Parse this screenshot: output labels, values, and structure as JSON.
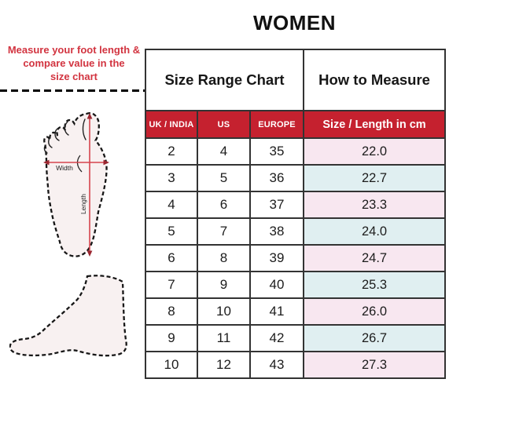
{
  "title": "WOMEN",
  "instruction": {
    "line1": "Measure your foot length &",
    "line2": "compare value in the",
    "line3": "size chart"
  },
  "foot_diagram": {
    "width_label": "Width",
    "length_label": "Length"
  },
  "table": {
    "section_left": "Size Range Chart",
    "section_right": "How to Measure"
  },
  "chart_data": {
    "type": "table",
    "title": "WOMEN",
    "columns": [
      "UK / INDIA",
      "US",
      "EUROPE",
      "Size / Length in cm"
    ],
    "rows": [
      [
        "2",
        "4",
        "35",
        "22.0"
      ],
      [
        "3",
        "5",
        "36",
        "22.7"
      ],
      [
        "4",
        "6",
        "37",
        "23.3"
      ],
      [
        "5",
        "7",
        "38",
        "24.0"
      ],
      [
        "6",
        "8",
        "39",
        "24.7"
      ],
      [
        "7",
        "9",
        "40",
        "25.3"
      ],
      [
        "8",
        "10",
        "41",
        "26.0"
      ],
      [
        "9",
        "11",
        "42",
        "26.7"
      ],
      [
        "10",
        "12",
        "43",
        "27.3"
      ]
    ]
  },
  "colors": {
    "header_red": "#C5212F",
    "row_pink": "#F8E7F0",
    "row_blue": "#E0EFF1",
    "accent_red": "#D23440",
    "arrow_red": "#D5444E",
    "arrowhead_red": "#9B2731",
    "foot_fill": "#F8F1F1"
  }
}
